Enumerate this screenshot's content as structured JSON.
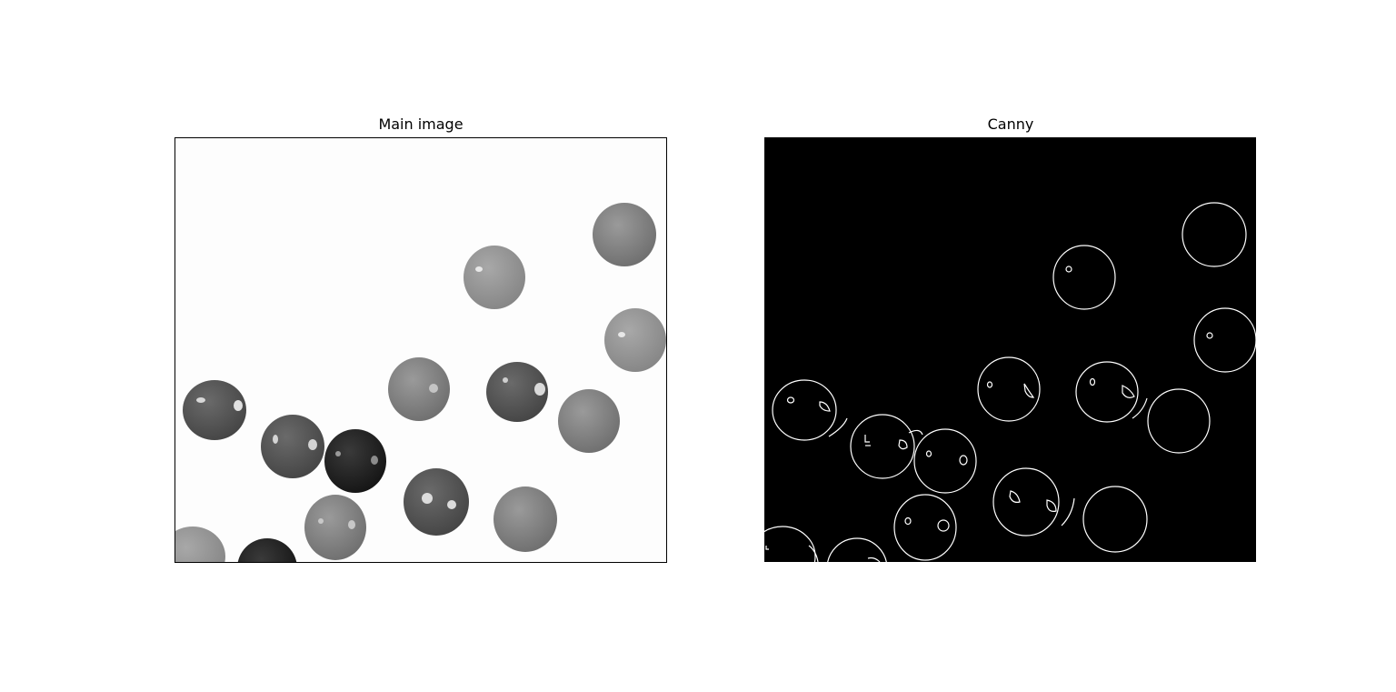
{
  "panels": [
    {
      "title": "Main image",
      "image": "grayscale photo of candy spheres on white background"
    },
    {
      "title": "Canny",
      "image": "canny edge detection output, white outlines on black"
    }
  ],
  "colors": {
    "figure_bg": "#ffffff",
    "canny_bg": "#000000",
    "edge": "#ffffff",
    "frame": "#000000"
  }
}
